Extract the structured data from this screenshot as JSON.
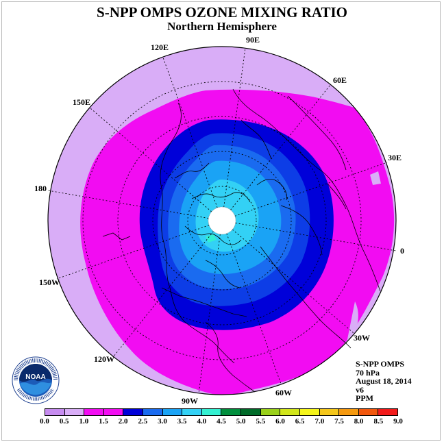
{
  "title": "S-NPP OMPS OZONE MIXING RATIO",
  "subtitle": "Northern Hemisphere",
  "longitude_labels": [
    "90E",
    "60E",
    "30E",
    "0",
    "30W",
    "60W",
    "90W",
    "120W",
    "150W",
    "180",
    "150E",
    "120E"
  ],
  "info": {
    "instrument": "S-NPP OMPS",
    "pressure": "70 hPa",
    "date": "August 18, 2014",
    "version": "v6",
    "units": "PPM"
  },
  "logo": {
    "text": "NOAA",
    "ring_text": "NATIONAL OCEANIC AND ATMOSPHERIC ADMINISTRATION",
    "bottom_text": "U.S. DEPARTMENT OF COMMERCE"
  },
  "colorbar": {
    "ticks": [
      "0.0",
      "0.5",
      "1.0",
      "1.5",
      "2.0",
      "2.5",
      "3.0",
      "3.5",
      "4.0",
      "4.5",
      "5.0",
      "5.5",
      "6.0",
      "6.5",
      "7.0",
      "7.5",
      "8.0",
      "8.5",
      "9.0"
    ],
    "colors": [
      "#c78cf0",
      "#d9adf7",
      "#f20cf2",
      "#f20cf2",
      "#0000d9",
      "#1a6bf0",
      "#1aa3f5",
      "#33d1f5",
      "#33f0d1",
      "#008f3d",
      "#006b29",
      "#9ad11a",
      "#d1e61a",
      "#f5f51a",
      "#f5c71a",
      "#f5990f",
      "#f2570d",
      "#f21a1a",
      "#8c5238"
    ]
  },
  "legend_colors_used": {
    "level_0_5": "#d9adf7",
    "level_1_0": "#f20cf2",
    "level_1_5": "#0000d9",
    "level_2_0": "#0d3de6",
    "level_2_5": "#1a6bf0",
    "level_3_0": "#1aa3f5",
    "level_3_5": "#33d1f5"
  }
}
